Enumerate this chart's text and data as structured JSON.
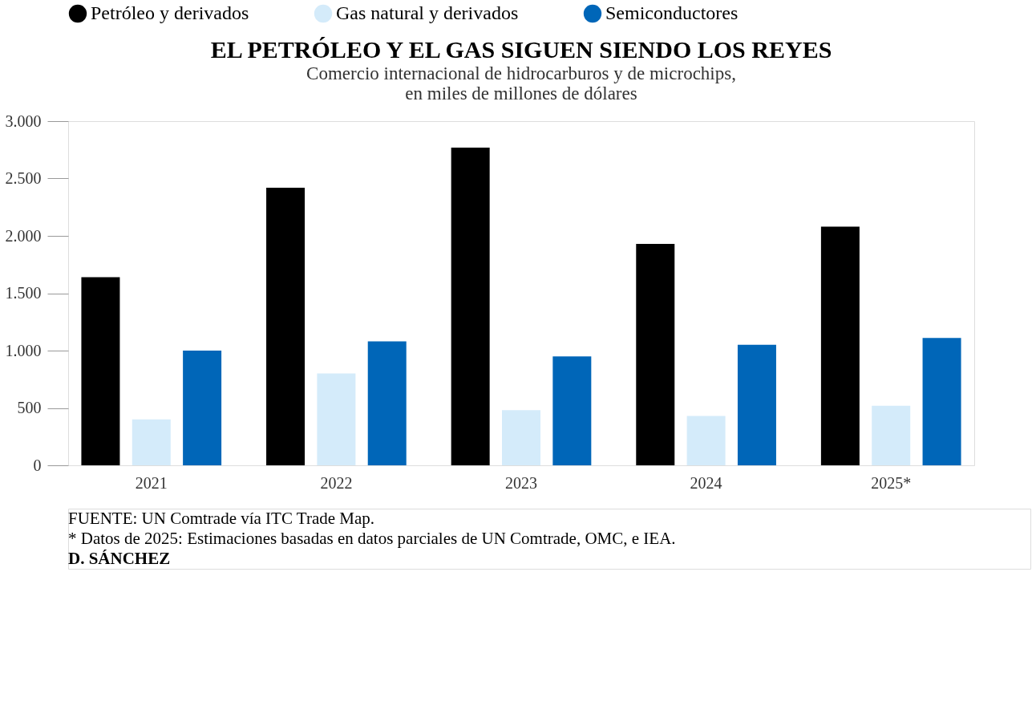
{
  "chart_data": {
    "type": "bar",
    "title": "EL PETRÓLEO Y EL GAS SIGUEN SIENDO LOS REYES",
    "subtitle": [
      "Comercio internacional de hidrocarburos y de microchips,",
      "en miles de millones de dólares"
    ],
    "categories": [
      "2021",
      "2022",
      "2023",
      "2024",
      "2025*"
    ],
    "series": [
      {
        "name": "Petróleo y derivados",
        "color": "#000000",
        "values": [
          1640,
          2420,
          2770,
          1930,
          2080
        ]
      },
      {
        "name": "Gas natural y derivados",
        "color": "#d4ebfa",
        "values": [
          400,
          800,
          480,
          430,
          520
        ]
      },
      {
        "name": "Semiconductores",
        "color": "#0066b8",
        "values": [
          1000,
          1080,
          950,
          1050,
          1110
        ]
      }
    ],
    "ylim": [
      0,
      3000
    ],
    "yticks": [
      0,
      500,
      {
        "value": 1000,
        "label": "1.000"
      },
      {
        "value": 1500,
        "label": "1.500"
      },
      {
        "value": 2000,
        "label": "2.000"
      },
      {
        "value": 2500,
        "label": "2.500"
      },
      {
        "value": 3000,
        "label": "3.000"
      }
    ],
    "grid": false,
    "legend": "top",
    "annotations": [
      "FUENTE: UN Comtrade vía ITC Trade Map.",
      "* Datos de 2025: Estimaciones basadas en datos parciales de UN Comtrade, OMC, e IEA.",
      "D. SÁNCHEZ"
    ]
  }
}
